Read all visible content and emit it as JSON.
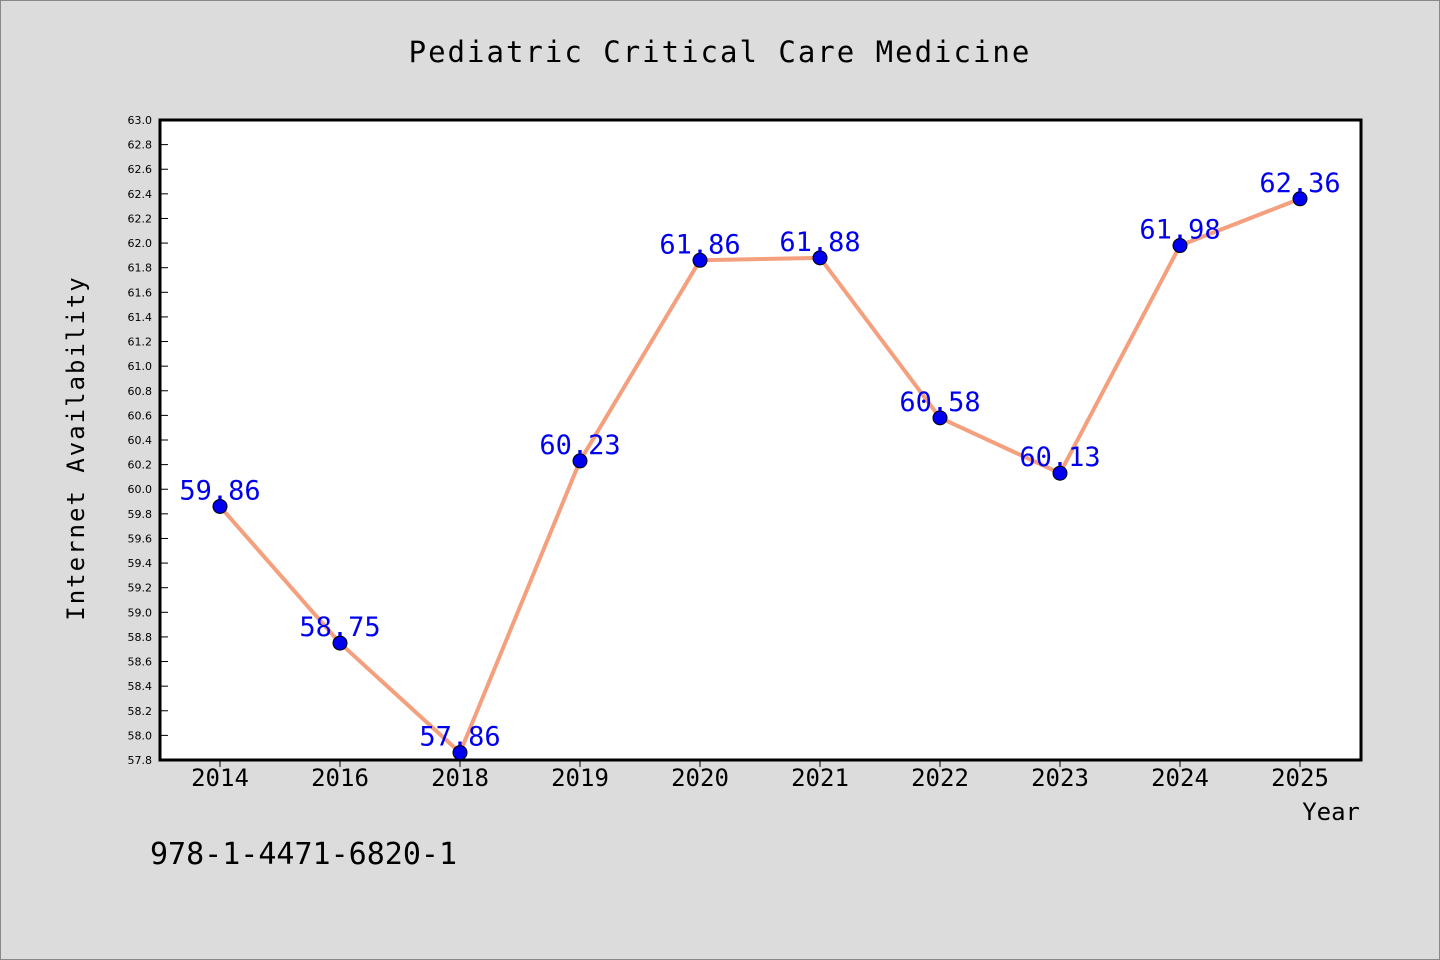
{
  "chart_data": {
    "type": "line",
    "title": "Pediatric Critical Care Medicine",
    "xlabel": "Year",
    "ylabel": "Internet Availability",
    "categories": [
      "2014",
      "2016",
      "2018",
      "2019",
      "2020",
      "2021",
      "2022",
      "2023",
      "2024",
      "2025"
    ],
    "series": [
      {
        "values": [
          59.86,
          58.75,
          57.86,
          60.23,
          61.86,
          61.88,
          60.58,
          60.13,
          61.98,
          62.36
        ],
        "labels": [
          "59.86",
          "58.75",
          "57.86",
          "60.23",
          "61.86",
          "61.88",
          "60.58",
          "60.13",
          "61.98",
          "62.36"
        ],
        "line_color": "#f4a07e",
        "marker_color": "#0000ee",
        "label_color": "#0000ee"
      }
    ],
    "ylim": [
      57.8,
      63.0
    ],
    "yticks": [
      "57.8",
      "58.0",
      "58.2",
      "58.4",
      "58.6",
      "58.8",
      "59.0",
      "59.2",
      "59.4",
      "59.6",
      "59.8",
      "60.0",
      "60.2",
      "60.4",
      "60.6",
      "60.8",
      "61.0",
      "61.2",
      "61.4",
      "61.6",
      "61.8",
      "62.0",
      "62.2",
      "62.4",
      "62.6",
      "62.8",
      "63.0"
    ],
    "grid": false,
    "legend": "none"
  },
  "footer_text": "978-1-4471-6820-1"
}
